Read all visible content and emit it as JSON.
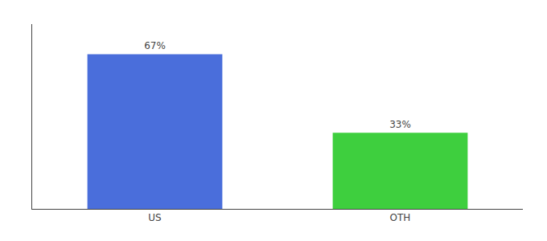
{
  "chart_data": {
    "type": "bar",
    "categories": [
      "US",
      "OTH"
    ],
    "values": [
      67,
      33
    ],
    "value_labels": [
      "67%",
      "33%"
    ],
    "colors": [
      "#4a6edb",
      "#3ecf3e"
    ],
    "data_labels": true,
    "ylim": [
      0,
      80
    ],
    "grid": false,
    "tick_labels": "x"
  }
}
